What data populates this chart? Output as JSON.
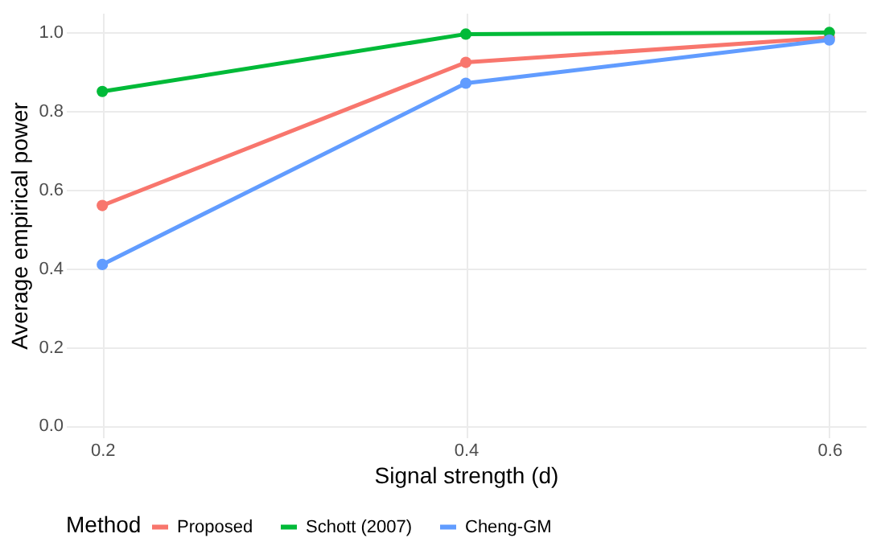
{
  "chart_data": {
    "type": "line",
    "xlabel": "Signal strength (d)",
    "ylabel": "Average empirical power",
    "legend_title": "Method",
    "x": [
      0.2,
      0.4,
      0.6
    ],
    "series": [
      {
        "name": "Proposed",
        "color": "#f8766d",
        "values": [
          0.56,
          0.924,
          0.987
        ]
      },
      {
        "name": "Schott (2007)",
        "color": "#00ba38",
        "values": [
          0.85,
          0.996,
          1.0
        ]
      },
      {
        "name": "Cheng-GM",
        "color": "#619cff",
        "values": [
          0.41,
          0.871,
          0.981
        ]
      }
    ],
    "xlim": [
      0.18,
      0.62
    ],
    "xticks": [
      0.2,
      0.4,
      0.6
    ],
    "ylim": [
      -0.03,
      1.05
    ],
    "yticks": [
      {
        "value": 0,
        "label": "0.0"
      },
      {
        "value": 0.2,
        "label": "0.2"
      },
      {
        "value": 0.4,
        "label": "0.4"
      },
      {
        "value": 0.6,
        "label": "0.6"
      },
      {
        "value": 0.8,
        "label": "0.8"
      },
      {
        "value": 1,
        "label": "1.0"
      }
    ],
    "grid": true,
    "legend": "bottom",
    "marker": "circle",
    "line_style": "solid"
  }
}
